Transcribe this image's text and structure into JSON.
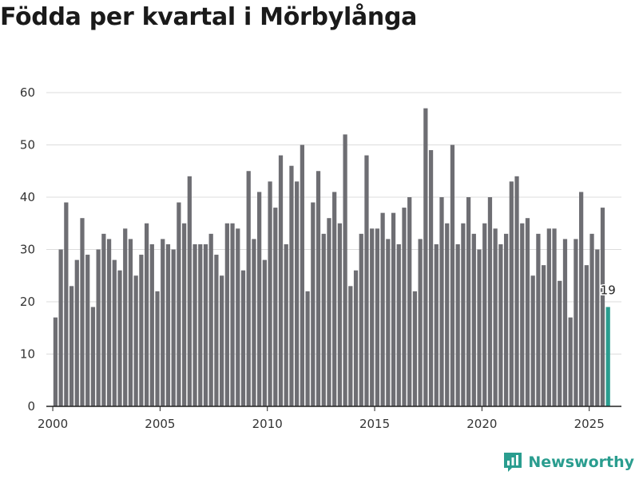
{
  "chart_data": {
    "type": "bar",
    "title": "Födda per kvartal i Mörbylånga",
    "xlabel": "",
    "ylabel": "",
    "ylim": [
      0,
      60
    ],
    "yticks": [
      0,
      10,
      20,
      30,
      40,
      50,
      60
    ],
    "xticks": [
      "2000",
      "2005",
      "2010",
      "2015",
      "2020",
      "2025"
    ],
    "xlim": [
      1999.7,
      2026.5
    ],
    "x_start": 2000.0,
    "x_step": 0.25,
    "grid": true,
    "series": [
      {
        "name": "Födda",
        "values": [
          17,
          30,
          39,
          23,
          28,
          36,
          29,
          19,
          30,
          33,
          32,
          28,
          26,
          34,
          32,
          25,
          29,
          35,
          31,
          22,
          32,
          31,
          30,
          39,
          35,
          44,
          31,
          31,
          31,
          33,
          29,
          25,
          35,
          35,
          34,
          26,
          45,
          32,
          41,
          28,
          43,
          38,
          48,
          31,
          46,
          43,
          50,
          22,
          39,
          45,
          33,
          36,
          41,
          35,
          52,
          23,
          26,
          33,
          48,
          34,
          34,
          37,
          32,
          37,
          31,
          38,
          40,
          22,
          32,
          57,
          49,
          31,
          40,
          35,
          50,
          31,
          35,
          40,
          33,
          30,
          35,
          40,
          34,
          31,
          33,
          43,
          44,
          35,
          36,
          25,
          33,
          27,
          34,
          34,
          24,
          32,
          17,
          32,
          41,
          27,
          33,
          30,
          38,
          19
        ]
      }
    ],
    "colors": {
      "bar": "#6e6e73",
      "highlight": "#2a9d8f",
      "grid": "#dcdcdc",
      "axis": "#222222"
    },
    "annotation": {
      "label": "19",
      "target": "last"
    }
  },
  "branding": {
    "text": "Newsworthy"
  }
}
